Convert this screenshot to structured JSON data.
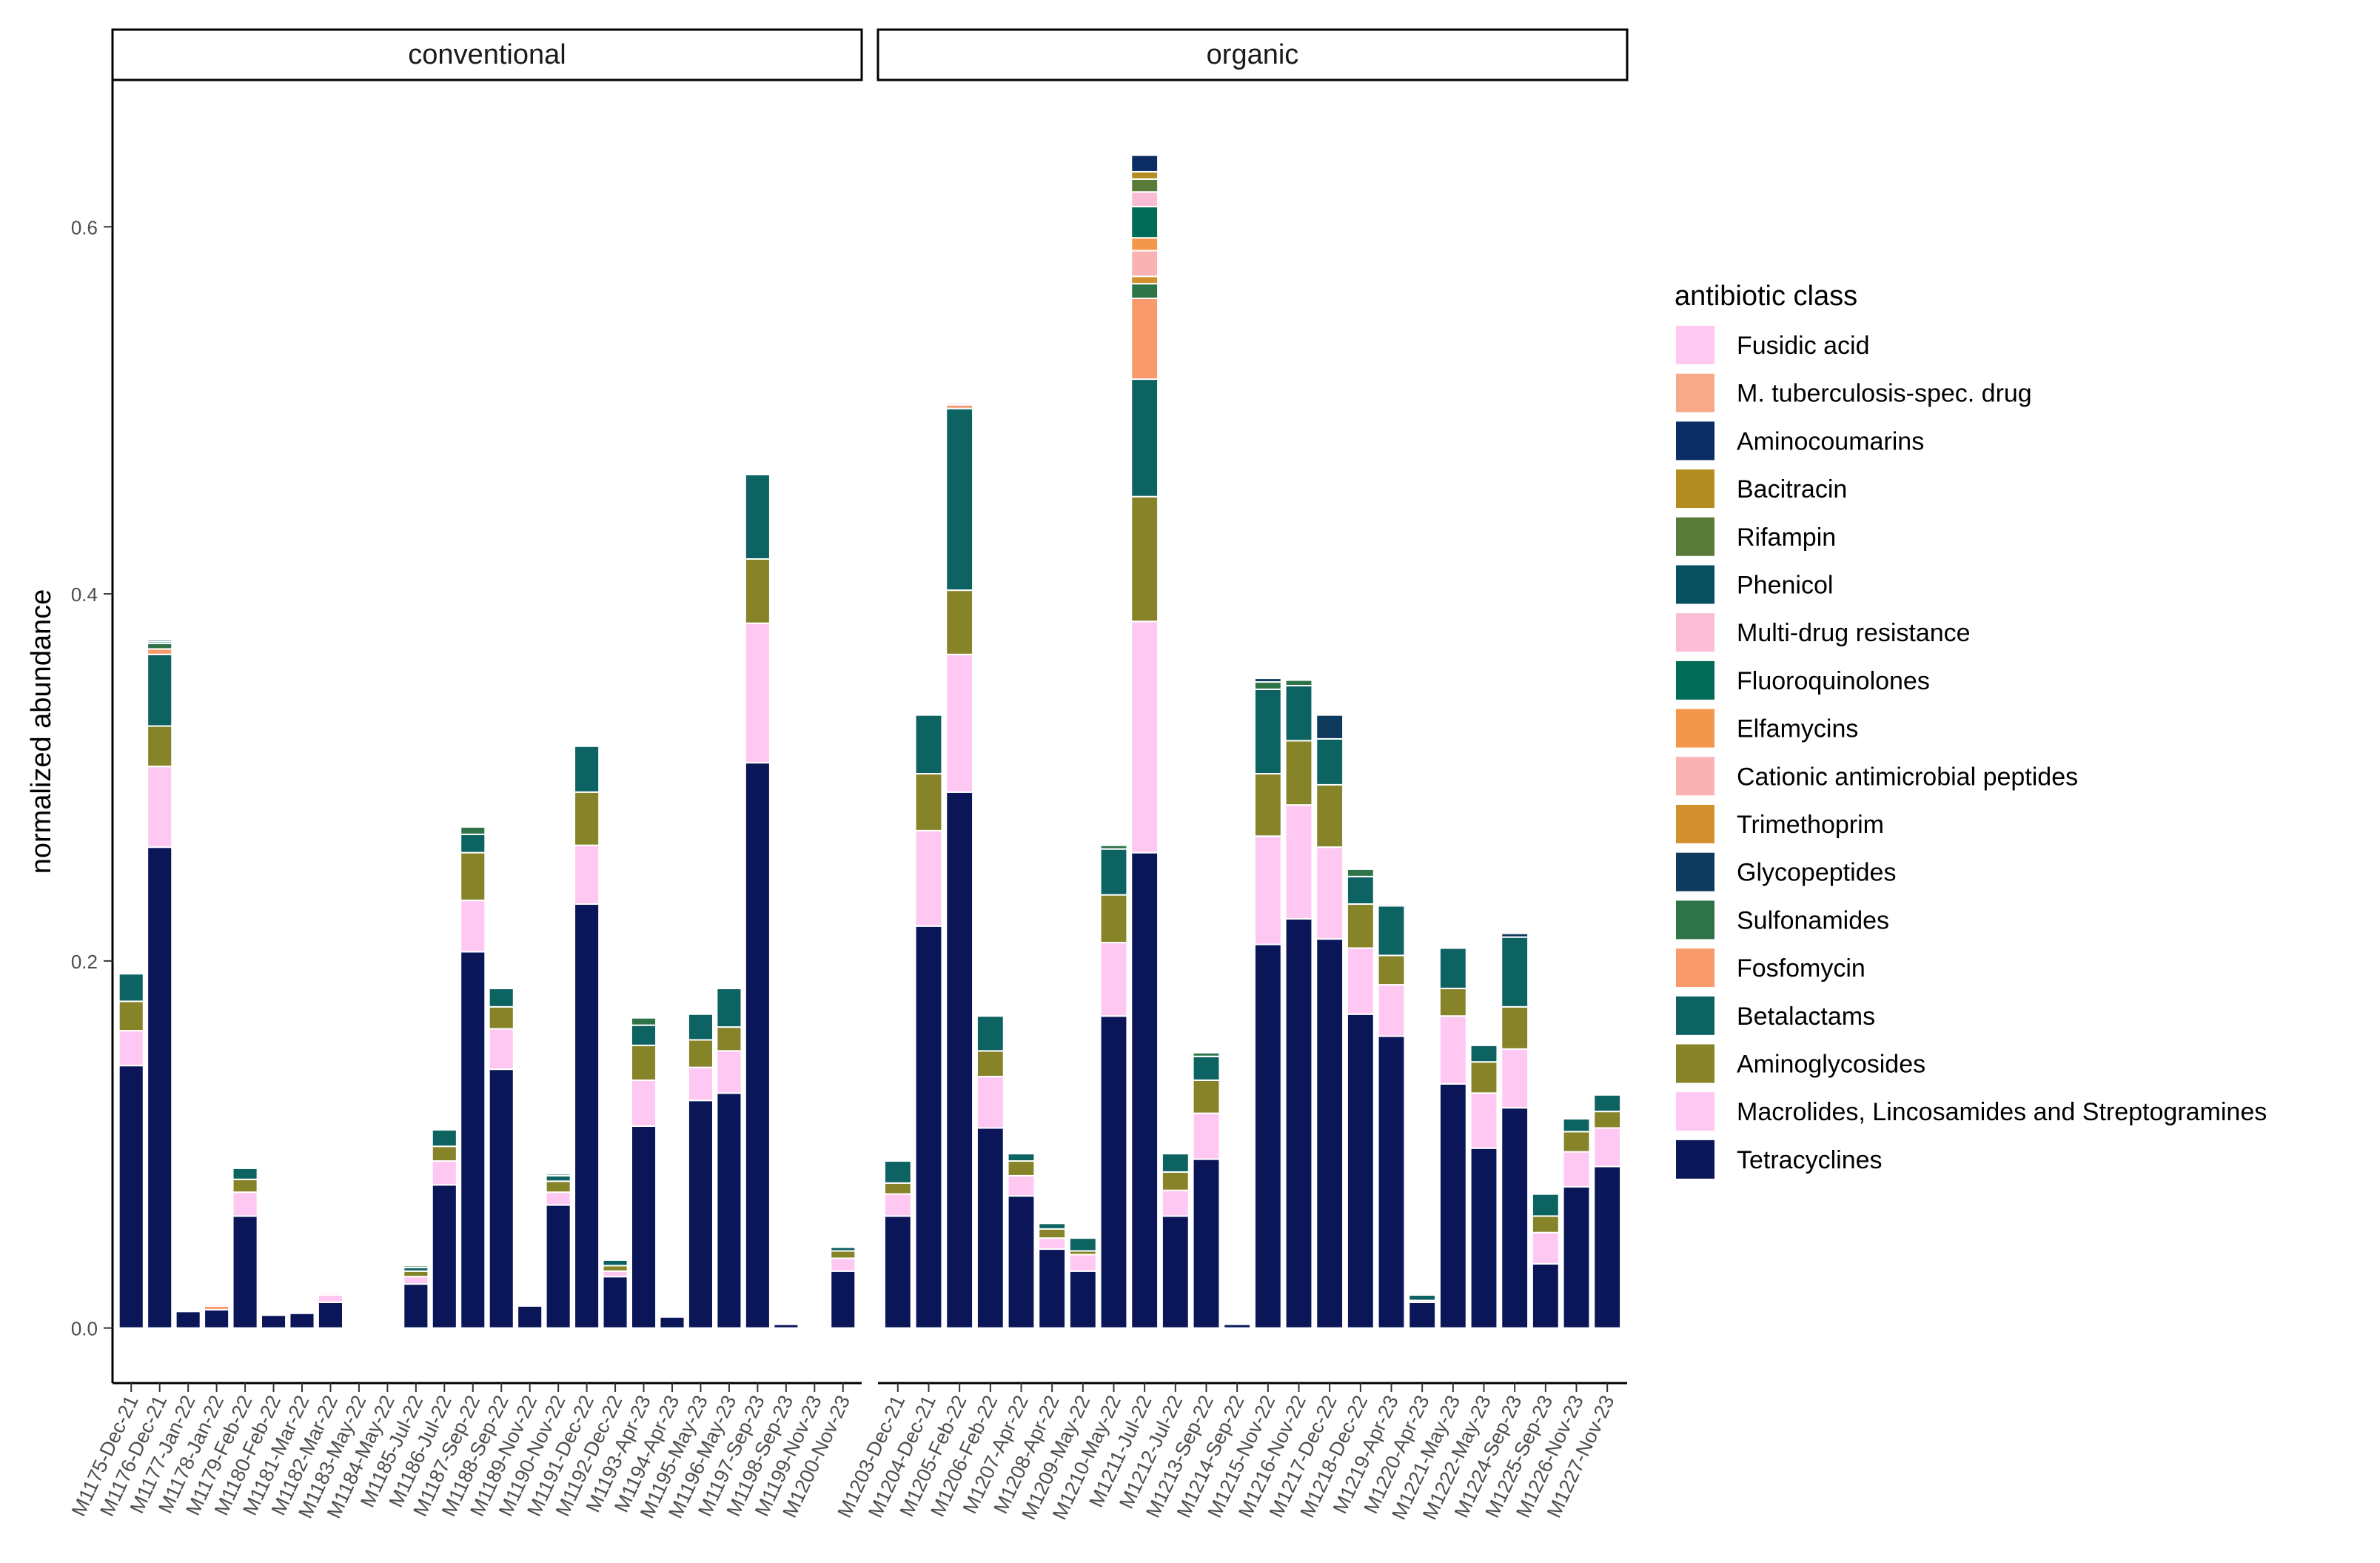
{
  "chart_data": {
    "type": "bar",
    "stacked": true,
    "facets": [
      "conventional",
      "organic"
    ],
    "ylabel": "normalized abundance",
    "xlabel": "",
    "ylim": [
      -0.03,
      0.68
    ],
    "yticks": [
      0.0,
      0.2,
      0.4,
      0.6
    ],
    "ytick_labels": [
      "0.0",
      "0.2",
      "0.4",
      "0.6"
    ],
    "legend": {
      "title": "antibiotic class",
      "placement": "right",
      "entries": [
        "Fusidic acid",
        "M. tuberculosis-spec. drug",
        "Aminocoumarins",
        "Bacitracin",
        "Rifampin",
        "Phenicol",
        "Multi-drug resistance",
        "Fluoroquinolones",
        "Elfamycins",
        "Cationic antimicrobial peptides",
        "Trimethoprim",
        "Glycopeptides",
        "Sulfonamides",
        "Fosfomycin",
        "Betalactams",
        "Aminoglycosides",
        "Macrolides, Lincosamides and Streptogramines",
        "Tetracyclines"
      ]
    },
    "classes": [
      {
        "name": "Tetracyclines",
        "color": "#0b1658"
      },
      {
        "name": "Macrolides, Lincosamides and Streptogramines",
        "color": "#ffc8f3"
      },
      {
        "name": "Aminoglycosides",
        "color": "#878329"
      },
      {
        "name": "Betalactams",
        "color": "#0d6262"
      },
      {
        "name": "Fosfomycin",
        "color": "#f99a6c"
      },
      {
        "name": "Sulfonamides",
        "color": "#2f7449"
      },
      {
        "name": "Glycopeptides",
        "color": "#0d3a5d"
      },
      {
        "name": "Trimethoprim",
        "color": "#d48f2e"
      },
      {
        "name": "Cationic antimicrobial peptides",
        "color": "#fbb2b2"
      },
      {
        "name": "Elfamycins",
        "color": "#f3974a"
      },
      {
        "name": "Fluoroquinolones",
        "color": "#006b56"
      },
      {
        "name": "Multi-drug resistance",
        "color": "#fbbcd6"
      },
      {
        "name": "Phenicol",
        "color": "#06505f"
      },
      {
        "name": "Rifampin",
        "color": "#5a7a3a"
      },
      {
        "name": "Bacitracin",
        "color": "#b48d22"
      },
      {
        "name": "Aminocoumarins",
        "color": "#0b2d63"
      },
      {
        "name": "M. tuberculosis-spec. drug",
        "color": "#f8a98a"
      },
      {
        "name": "Fusidic acid",
        "color": "#ffc8f0"
      }
    ],
    "panels": [
      {
        "facet": "conventional",
        "samples": [
          {
            "label": "M1175-Dec-21",
            "values": {
              "Tetracyclines": 0.143,
              "Macrolides, Lincosamides and Streptogramines": 0.019,
              "Aminoglycosides": 0.016,
              "Betalactams": 0.015
            }
          },
          {
            "label": "M1176-Dec-21",
            "values": {
              "Tetracyclines": 0.262,
              "Macrolides, Lincosamides and Streptogramines": 0.044,
              "Aminoglycosides": 0.022,
              "Betalactams": 0.039,
              "Fosfomycin": 0.003,
              "Sulfonamides": 0.003,
              "Fluoroquinolones": 0.001,
              "Phenicol": 0.001
            }
          },
          {
            "label": "M1177-Jan-22",
            "values": {
              "Tetracyclines": 0.009
            }
          },
          {
            "label": "M1178-Jan-22",
            "values": {
              "Tetracyclines": 0.01,
              "Fosfomycin": 0.002,
              "Fusidic acid": 0.001
            }
          },
          {
            "label": "M1179-Feb-22",
            "values": {
              "Tetracyclines": 0.061,
              "Macrolides, Lincosamides and Streptogramines": 0.013,
              "Aminoglycosides": 0.007,
              "Betalactams": 0.006
            }
          },
          {
            "label": "M1180-Feb-22",
            "values": {
              "Tetracyclines": 0.007
            }
          },
          {
            "label": "M1181-Mar-22",
            "values": {
              "Tetracyclines": 0.008
            }
          },
          {
            "label": "M1182-Mar-22",
            "values": {
              "Tetracyclines": 0.014,
              "Macrolides, Lincosamides and Streptogramines": 0.004,
              "Fusidic acid": 0.001
            }
          },
          {
            "label": "M1183-May-22",
            "values": {}
          },
          {
            "label": "M1184-May-22",
            "values": {}
          },
          {
            "label": "M1185-Jul-22",
            "values": {
              "Tetracyclines": 0.024,
              "Macrolides, Lincosamides and Streptogramines": 0.004,
              "Aminoglycosides": 0.003,
              "Betalactams": 0.002,
              "Sulfonamides": 0.001
            }
          },
          {
            "label": "M1186-Jul-22",
            "values": {
              "Tetracyclines": 0.078,
              "Macrolides, Lincosamides and Streptogramines": 0.013,
              "Aminoglycosides": 0.008,
              "Betalactams": 0.009
            }
          },
          {
            "label": "M1187-Sep-22",
            "values": {
              "Tetracyclines": 0.205,
              "Macrolides, Lincosamides and Streptogramines": 0.028,
              "Aminoglycosides": 0.026,
              "Betalactams": 0.01,
              "Sulfonamides": 0.004
            }
          },
          {
            "label": "M1188-Sep-22",
            "values": {
              "Tetracyclines": 0.141,
              "Macrolides, Lincosamides and Streptogramines": 0.022,
              "Aminoglycosides": 0.012,
              "Betalactams": 0.01
            }
          },
          {
            "label": "M1189-Nov-22",
            "values": {
              "Tetracyclines": 0.012
            }
          },
          {
            "label": "M1190-Nov-22",
            "values": {
              "Tetracyclines": 0.067,
              "Macrolides, Lincosamides and Streptogramines": 0.007,
              "Aminoglycosides": 0.006,
              "Betalactams": 0.003,
              "Sulfonamides": 0.001
            }
          },
          {
            "label": "M1191-Dec-22",
            "values": {
              "Tetracyclines": 0.231,
              "Macrolides, Lincosamides and Streptogramines": 0.032,
              "Aminoglycosides": 0.029,
              "Betalactams": 0.025
            }
          },
          {
            "label": "M1192-Dec-22",
            "values": {
              "Tetracyclines": 0.028,
              "Macrolides, Lincosamides and Streptogramines": 0.003,
              "Aminoglycosides": 0.003,
              "Betalactams": 0.003
            }
          },
          {
            "label": "M1193-Apr-23",
            "values": {
              "Tetracyclines": 0.11,
              "Macrolides, Lincosamides and Streptogramines": 0.025,
              "Aminoglycosides": 0.019,
              "Betalactams": 0.011,
              "Sulfonamides": 0.004
            }
          },
          {
            "label": "M1194-Apr-23",
            "values": {
              "Tetracyclines": 0.006
            }
          },
          {
            "label": "M1195-May-23",
            "values": {
              "Tetracyclines": 0.124,
              "Macrolides, Lincosamides and Streptogramines": 0.018,
              "Aminoglycosides": 0.015,
              "Betalactams": 0.014
            }
          },
          {
            "label": "M1196-May-23",
            "values": {
              "Tetracyclines": 0.128,
              "Macrolides, Lincosamides and Streptogramines": 0.023,
              "Aminoglycosides": 0.013,
              "Betalactams": 0.021
            }
          },
          {
            "label": "M1197-Sep-23",
            "values": {
              "Tetracyclines": 0.308,
              "Macrolides, Lincosamides and Streptogramines": 0.076,
              "Aminoglycosides": 0.035,
              "Betalactams": 0.046
            }
          },
          {
            "label": "M1198-Sep-23",
            "values": {
              "Tetracyclines": 0.002
            }
          },
          {
            "label": "M1199-Nov-23",
            "values": {}
          },
          {
            "label": "M1200-Nov-23",
            "values": {
              "Tetracyclines": 0.031,
              "Macrolides, Lincosamides and Streptogramines": 0.007,
              "Aminoglycosides": 0.004,
              "Betalactams": 0.002
            }
          }
        ]
      },
      {
        "facet": "organic",
        "samples": [
          {
            "label": "M1203-Dec-21",
            "values": {
              "Tetracyclines": 0.061,
              "Macrolides, Lincosamides and Streptogramines": 0.012,
              "Aminoglycosides": 0.006,
              "Betalactams": 0.012
            }
          },
          {
            "label": "M1204-Dec-21",
            "values": {
              "Tetracyclines": 0.219,
              "Macrolides, Lincosamides and Streptogramines": 0.052,
              "Aminoglycosides": 0.031,
              "Betalactams": 0.032
            }
          },
          {
            "label": "M1205-Feb-22",
            "values": {
              "Tetracyclines": 0.292,
              "Macrolides, Lincosamides and Streptogramines": 0.075,
              "Aminoglycosides": 0.035,
              "Betalactams": 0.099,
              "Fosfomycin": 0.002,
              "Fusidic acid": 0.001
            }
          },
          {
            "label": "M1206-Feb-22",
            "values": {
              "Tetracyclines": 0.109,
              "Macrolides, Lincosamides and Streptogramines": 0.028,
              "Aminoglycosides": 0.014,
              "Betalactams": 0.019
            }
          },
          {
            "label": "M1207-Apr-22",
            "values": {
              "Tetracyclines": 0.072,
              "Macrolides, Lincosamides and Streptogramines": 0.011,
              "Aminoglycosides": 0.008,
              "Betalactams": 0.004
            }
          },
          {
            "label": "M1208-Apr-22",
            "values": {
              "Tetracyclines": 0.043,
              "Macrolides, Lincosamides and Streptogramines": 0.006,
              "Aminoglycosides": 0.005,
              "Betalactams": 0.003
            }
          },
          {
            "label": "M1209-May-22",
            "values": {
              "Tetracyclines": 0.031,
              "Macrolides, Lincosamides and Streptogramines": 0.009,
              "Aminoglycosides": 0.002,
              "Betalactams": 0.007
            }
          },
          {
            "label": "M1210-May-22",
            "values": {
              "Tetracyclines": 0.17,
              "Macrolides, Lincosamides and Streptogramines": 0.04,
              "Aminoglycosides": 0.026,
              "Betalactams": 0.025,
              "Sulfonamides": 0.002
            }
          },
          {
            "label": "M1211-Jul-22",
            "values": {
              "Tetracyclines": 0.259,
              "Macrolides, Lincosamides and Streptogramines": 0.126,
              "Aminoglycosides": 0.068,
              "Betalactams": 0.064,
              "Fosfomycin": 0.044,
              "Sulfonamides": 0.008,
              "Trimethoprim": 0.004,
              "Cationic antimicrobial peptides": 0.014,
              "Elfamycins": 0.007,
              "Fluoroquinolones": 0.017,
              "Multi-drug resistance": 0.008,
              "Rifampin": 0.007,
              "Bacitracin": 0.004,
              "Aminocoumarins": 0.009
            }
          },
          {
            "label": "M1212-Jul-22",
            "values": {
              "Tetracyclines": 0.061,
              "Macrolides, Lincosamides and Streptogramines": 0.014,
              "Aminoglycosides": 0.01,
              "Betalactams": 0.01
            }
          },
          {
            "label": "M1213-Sep-22",
            "values": {
              "Tetracyclines": 0.092,
              "Macrolides, Lincosamides and Streptogramines": 0.025,
              "Aminoglycosides": 0.018,
              "Betalactams": 0.013,
              "Sulfonamides": 0.002
            }
          },
          {
            "label": "M1214-Sep-22",
            "values": {
              "Tetracyclines": 0.002
            }
          },
          {
            "label": "M1215-Nov-22",
            "values": {
              "Tetracyclines": 0.209,
              "Macrolides, Lincosamides and Streptogramines": 0.059,
              "Aminoglycosides": 0.034,
              "Betalactams": 0.046,
              "Sulfonamides": 0.004,
              "Glycopeptides": 0.002
            }
          },
          {
            "label": "M1216-Nov-22",
            "values": {
              "Tetracyclines": 0.223,
              "Macrolides, Lincosamides and Streptogramines": 0.062,
              "Aminoglycosides": 0.035,
              "Betalactams": 0.03,
              "Sulfonamides": 0.003
            }
          },
          {
            "label": "M1217-Dec-22",
            "values": {
              "Tetracyclines": 0.212,
              "Macrolides, Lincosamides and Streptogramines": 0.05,
              "Aminoglycosides": 0.034,
              "Betalactams": 0.025,
              "Glycopeptides": 0.013
            }
          },
          {
            "label": "M1218-Dec-22",
            "values": {
              "Tetracyclines": 0.171,
              "Macrolides, Lincosamides and Streptogramines": 0.036,
              "Aminoglycosides": 0.024,
              "Betalactams": 0.015,
              "Sulfonamides": 0.004
            }
          },
          {
            "label": "M1219-Apr-23",
            "values": {
              "Tetracyclines": 0.159,
              "Macrolides, Lincosamides and Streptogramines": 0.028,
              "Aminoglycosides": 0.016,
              "Betalactams": 0.027,
              "Fusidic acid": 0.001
            }
          },
          {
            "label": "M1220-Apr-23",
            "values": {
              "Tetracyclines": 0.014,
              "Macrolides, Lincosamides and Streptogramines": 0.001,
              "Betalactams": 0.003
            }
          },
          {
            "label": "M1221-May-23",
            "values": {
              "Tetracyclines": 0.133,
              "Macrolides, Lincosamides and Streptogramines": 0.037,
              "Aminoglycosides": 0.015,
              "Betalactams": 0.022
            }
          },
          {
            "label": "M1222-May-23",
            "values": {
              "Tetracyclines": 0.098,
              "Macrolides, Lincosamides and Streptogramines": 0.03,
              "Aminoglycosides": 0.017,
              "Betalactams": 0.009
            }
          },
          {
            "label": "M1224-Sep-23",
            "values": {
              "Tetracyclines": 0.12,
              "Macrolides, Lincosamides and Streptogramines": 0.032,
              "Aminoglycosides": 0.023,
              "Betalactams": 0.038,
              "Glycopeptides": 0.002
            }
          },
          {
            "label": "M1225-Sep-23",
            "values": {
              "Tetracyclines": 0.035,
              "Macrolides, Lincosamides and Streptogramines": 0.017,
              "Aminoglycosides": 0.009,
              "Betalactams": 0.012
            }
          },
          {
            "label": "M1226-Nov-23",
            "values": {
              "Tetracyclines": 0.077,
              "Macrolides, Lincosamides and Streptogramines": 0.019,
              "Aminoglycosides": 0.011,
              "Betalactams": 0.007
            }
          },
          {
            "label": "M1227-Nov-23",
            "values": {
              "Tetracyclines": 0.088,
              "Macrolides, Lincosamides and Streptogramines": 0.021,
              "Aminoglycosides": 0.009,
              "Betalactams": 0.009
            }
          }
        ]
      }
    ]
  }
}
